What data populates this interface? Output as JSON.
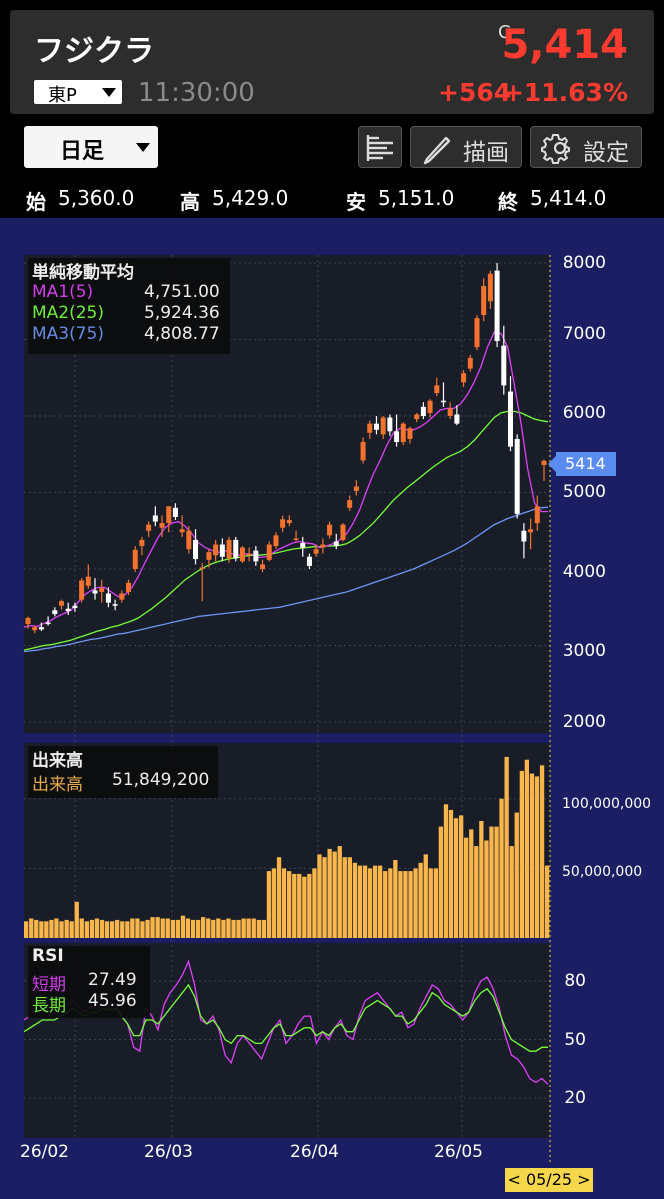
{
  "header": {
    "stock_name": "フジクラ",
    "price_flag": "C",
    "price": "5,414",
    "market": "東P",
    "time": "11:30:00",
    "change": "+564",
    "change_pct": "+11.63%"
  },
  "toolbar": {
    "period": "日足",
    "draw_label": "描画",
    "settings_label": "設定"
  },
  "ohlc": {
    "open_label": "始",
    "open": "5,360.0",
    "high_label": "高",
    "high": "5,429.0",
    "low_label": "安",
    "low": "5,151.0",
    "close_label": "終",
    "close": "5,414.0"
  },
  "legend_ma": {
    "title": "単純移動平均",
    "ma1_label": "MA1(5)",
    "ma1_value": "4,751.00",
    "ma2_label": "MA2(25)",
    "ma2_value": "5,924.36",
    "ma3_label": "MA3(75)",
    "ma3_value": "4,808.77"
  },
  "legend_volume": {
    "title": "出来高",
    "label": "出来高",
    "value": "51,849,200"
  },
  "legend_rsi": {
    "title": "RSI",
    "short_label": "短期",
    "short_value": "27.49",
    "long_label": "長期",
    "long_value": "45.96"
  },
  "current_price_tag": "5414",
  "cursor_date": "< 05/25 >",
  "colors": {
    "up": "#f5732f",
    "down": "#ffffff",
    "ma1": "#e040fb",
    "ma2": "#76ff3a",
    "ma3": "#6e96f5",
    "volume": "#f8b64c",
    "rsi_short": "#e040fb",
    "rsi_long": "#76ff3a",
    "price_up": "#ff3b30"
  },
  "icons": [
    "list-icon",
    "pencil-icon",
    "gear-icon",
    "chevron-down-icon"
  ],
  "chart_data": [
    {
      "type": "candlestick",
      "title": "単純移動平均",
      "yticks": [
        "8000",
        "7000",
        "6000",
        "5000",
        "4000",
        "3000",
        "2000"
      ],
      "ylim": [
        2000,
        8000
      ],
      "xticks": [
        "26/02",
        "26/03",
        "26/04",
        "26/05"
      ],
      "candles": [
        [
          3280,
          3380,
          3220,
          3360
        ],
        [
          3200,
          3260,
          3160,
          3240
        ],
        [
          3240,
          3300,
          3190,
          3210
        ],
        [
          3300,
          3380,
          3260,
          3290
        ],
        [
          3460,
          3500,
          3380,
          3410
        ],
        [
          3520,
          3600,
          3470,
          3580
        ],
        [
          3480,
          3560,
          3400,
          3450
        ],
        [
          3520,
          3560,
          3440,
          3490
        ],
        [
          3600,
          3880,
          3560,
          3850
        ],
        [
          3780,
          4060,
          3740,
          3900
        ],
        [
          3720,
          3880,
          3600,
          3680
        ],
        [
          3700,
          3860,
          3560,
          3750
        ],
        [
          3680,
          3760,
          3500,
          3560
        ],
        [
          3540,
          3600,
          3460,
          3520
        ],
        [
          3600,
          3720,
          3560,
          3680
        ],
        [
          3700,
          3860,
          3660,
          3820
        ],
        [
          4000,
          4300,
          3960,
          4250
        ],
        [
          4300,
          4420,
          4180,
          4380
        ],
        [
          4500,
          4620,
          4420,
          4580
        ],
        [
          4700,
          4820,
          4560,
          4620
        ],
        [
          4540,
          4700,
          4420,
          4600
        ],
        [
          4600,
          4820,
          4480,
          4820
        ],
        [
          4800,
          4860,
          4640,
          4680
        ],
        [
          4480,
          4700,
          4420,
          4520
        ],
        [
          4260,
          4560,
          4200,
          4500
        ],
        [
          4380,
          4520,
          4060,
          4130
        ],
        [
          4000,
          4080,
          3580,
          4020
        ],
        [
          4120,
          4260,
          4020,
          4220
        ],
        [
          4180,
          4380,
          4100,
          4320
        ],
        [
          4320,
          4400,
          4100,
          4160
        ],
        [
          4140,
          4420,
          4080,
          4380
        ],
        [
          4380,
          4420,
          4100,
          4140
        ],
        [
          4100,
          4300,
          4080,
          4280
        ],
        [
          4180,
          4280,
          4100,
          4200
        ],
        [
          4240,
          4300,
          4040,
          4100
        ],
        [
          4000,
          4120,
          3960,
          4060
        ],
        [
          4120,
          4360,
          4100,
          4320
        ],
        [
          4300,
          4480,
          4260,
          4440
        ],
        [
          4540,
          4700,
          4480,
          4650
        ],
        [
          4600,
          4700,
          4560,
          4640
        ],
        [
          4380,
          4500,
          4360,
          4400
        ],
        [
          4340,
          4420,
          4160,
          4280
        ],
        [
          4160,
          4200,
          4000,
          4040
        ],
        [
          4200,
          4320,
          4160,
          4260
        ],
        [
          4280,
          4400,
          4200,
          4320
        ],
        [
          4440,
          4620,
          4400,
          4580
        ],
        [
          4360,
          4460,
          4260,
          4300
        ],
        [
          4380,
          4600,
          4360,
          4580
        ],
        [
          4800,
          4960,
          4760,
          4900
        ],
        [
          5020,
          5160,
          4960,
          5080
        ],
        [
          5420,
          5720,
          5380,
          5660
        ],
        [
          5780,
          5940,
          5700,
          5900
        ],
        [
          5900,
          6000,
          5760,
          5820
        ],
        [
          5760,
          6000,
          5700,
          5980
        ],
        [
          5980,
          6020,
          5740,
          5800
        ],
        [
          5800,
          6020,
          5600,
          5660
        ],
        [
          5660,
          5920,
          5620,
          5900
        ],
        [
          5700,
          5860,
          5640,
          5840
        ],
        [
          5960,
          6040,
          5920,
          6020
        ],
        [
          6120,
          6180,
          5960,
          6000
        ],
        [
          6040,
          6220,
          5980,
          6200
        ],
        [
          6300,
          6500,
          6260,
          6400
        ],
        [
          6200,
          6440,
          6120,
          6180
        ],
        [
          6000,
          6180,
          5960,
          6100
        ],
        [
          6020,
          6140,
          5880,
          5900
        ],
        [
          6440,
          6600,
          6380,
          6560
        ],
        [
          6620,
          6800,
          6580,
          6760
        ],
        [
          6900,
          7320,
          6860,
          7280
        ],
        [
          7320,
          7800,
          7240,
          7700
        ],
        [
          7500,
          7900,
          7400,
          7860
        ],
        [
          7900,
          8000,
          6900,
          6980
        ],
        [
          6920,
          7180,
          6280,
          6400
        ],
        [
          6320,
          6520,
          5540,
          5600
        ],
        [
          5700,
          5760,
          4660,
          4720
        ],
        [
          4500,
          4600,
          4140,
          4360
        ],
        [
          4480,
          4660,
          4260,
          4520
        ],
        [
          4600,
          4960,
          4500,
          4820
        ],
        [
          5360,
          5429,
          5151,
          5414
        ]
      ],
      "ma1": [
        3240,
        3260,
        3250,
        3290,
        3330,
        3380,
        3420,
        3460,
        3560,
        3660,
        3720,
        3760,
        3760,
        3700,
        3640,
        3660,
        3750,
        3900,
        4080,
        4250,
        4420,
        4540,
        4600,
        4620,
        4560,
        4460,
        4340,
        4280,
        4240,
        4220,
        4240,
        4200,
        4180,
        4200,
        4190,
        4150,
        4160,
        4210,
        4260,
        4300,
        4340,
        4360,
        4340,
        4330,
        4280,
        4300,
        4330,
        4380,
        4460,
        4600,
        4780,
        5020,
        5240,
        5420,
        5620,
        5780,
        5840,
        5820,
        5820,
        5860,
        5920,
        6000,
        6080,
        6100,
        6100,
        6160,
        6280,
        6440,
        6640,
        6900,
        7100,
        7080,
        6900,
        6400,
        5900,
        5300,
        4860,
        4750,
        4751
      ],
      "ma2": [
        2940,
        2960,
        2980,
        3000,
        3010,
        3030,
        3050,
        3070,
        3100,
        3130,
        3160,
        3190,
        3210,
        3240,
        3260,
        3290,
        3320,
        3360,
        3420,
        3480,
        3550,
        3620,
        3700,
        3780,
        3860,
        3920,
        3980,
        4030,
        4070,
        4100,
        4120,
        4140,
        4150,
        4170,
        4180,
        4180,
        4190,
        4200,
        4220,
        4240,
        4260,
        4270,
        4280,
        4290,
        4290,
        4300,
        4300,
        4310,
        4330,
        4380,
        4440,
        4520,
        4600,
        4700,
        4800,
        4900,
        4980,
        5060,
        5130,
        5200,
        5270,
        5340,
        5400,
        5460,
        5500,
        5540,
        5600,
        5680,
        5780,
        5880,
        5980,
        6040,
        6060,
        6060,
        6040,
        6000,
        5960,
        5940,
        5924
      ],
      "ma3": [
        2920,
        2930,
        2940,
        2960,
        2970,
        2990,
        3000,
        3020,
        3040,
        3060,
        3080,
        3090,
        3110,
        3130,
        3150,
        3160,
        3180,
        3200,
        3220,
        3240,
        3260,
        3280,
        3300,
        3320,
        3340,
        3360,
        3380,
        3390,
        3400,
        3410,
        3420,
        3430,
        3440,
        3450,
        3460,
        3470,
        3480,
        3490,
        3500,
        3520,
        3540,
        3560,
        3580,
        3600,
        3620,
        3640,
        3660,
        3680,
        3700,
        3730,
        3760,
        3790,
        3820,
        3850,
        3880,
        3910,
        3940,
        3970,
        4000,
        4040,
        4080,
        4120,
        4160,
        4200,
        4240,
        4290,
        4340,
        4400,
        4460,
        4520,
        4580,
        4620,
        4660,
        4690,
        4720,
        4750,
        4780,
        4800,
        4808
      ]
    },
    {
      "type": "bar",
      "title": "出来高",
      "yticks": [
        "100,000,000",
        "50,000,000"
      ],
      "ylim": [
        0,
        140000000
      ],
      "values": [
        12,
        14,
        13,
        12,
        12,
        13,
        14,
        12,
        13,
        12,
        26,
        14,
        12,
        13,
        14,
        13,
        12,
        12,
        13,
        12,
        12,
        14,
        14,
        12,
        13,
        15,
        15,
        14,
        14,
        13,
        13,
        16,
        14,
        13,
        13,
        15,
        14,
        13,
        14,
        13,
        14,
        13,
        13,
        14,
        14,
        14,
        13,
        13,
        48,
        50,
        58,
        50,
        48,
        46,
        46,
        44,
        46,
        50,
        60,
        58,
        64,
        62,
        66,
        58,
        58,
        54,
        52,
        52,
        50,
        52,
        52,
        48,
        50,
        56,
        48,
        48,
        48,
        50,
        54,
        60,
        50,
        50,
        80,
        96,
        92,
        86,
        88,
        72,
        78,
        66,
        84,
        70,
        80,
        80,
        100,
        130,
        66,
        90,
        120,
        128,
        118,
        116,
        124,
        52
      ]
    },
    {
      "type": "line",
      "title": "RSI",
      "yticks": [
        "80",
        "50",
        "20"
      ],
      "ylim": [
        0,
        100
      ],
      "series": [
        {
          "name": "短期",
          "values": [
            60,
            62,
            66,
            65,
            64,
            63,
            66,
            68,
            70,
            66,
            64,
            67,
            66,
            70,
            68,
            68,
            62,
            58,
            46,
            44,
            66,
            62,
            55,
            68,
            74,
            78,
            83,
            90,
            78,
            60,
            58,
            62,
            55,
            42,
            38,
            48,
            52,
            48,
            44,
            40,
            48,
            56,
            60,
            48,
            52,
            58,
            62,
            62,
            48,
            54,
            50,
            56,
            60,
            52,
            50,
            62,
            70,
            72,
            74,
            70,
            66,
            62,
            64,
            56,
            58,
            66,
            72,
            78,
            76,
            70,
            68,
            64,
            60,
            64,
            74,
            80,
            82,
            76,
            66,
            52,
            42,
            40,
            36,
            30,
            28,
            30,
            27
          ]
        },
        {
          "name": "長期",
          "values": [
            54,
            56,
            58,
            60,
            60,
            60,
            62,
            64,
            66,
            64,
            62,
            64,
            64,
            66,
            65,
            66,
            62,
            58,
            52,
            52,
            60,
            60,
            58,
            62,
            66,
            70,
            74,
            78,
            72,
            62,
            58,
            60,
            56,
            50,
            48,
            52,
            52,
            50,
            48,
            48,
            52,
            56,
            58,
            52,
            52,
            54,
            56,
            56,
            52,
            54,
            52,
            56,
            58,
            54,
            54,
            60,
            66,
            68,
            70,
            68,
            66,
            62,
            62,
            58,
            60,
            64,
            68,
            74,
            72,
            68,
            66,
            64,
            62,
            64,
            70,
            74,
            76,
            72,
            64,
            56,
            50,
            48,
            46,
            44,
            44,
            46,
            46
          ]
        }
      ]
    }
  ]
}
